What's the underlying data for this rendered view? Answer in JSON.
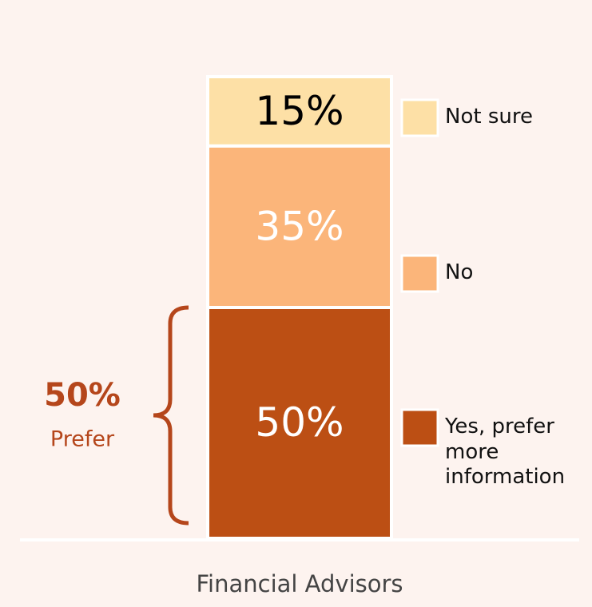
{
  "chart_data": {
    "type": "stacked_bar",
    "categories": [
      "Financial Advisors"
    ],
    "series": [
      {
        "name": "Yes, prefer more information",
        "color": "#bc4f14",
        "values": [
          50
        ],
        "value_labels": [
          "50%"
        ]
      },
      {
        "name": "No",
        "color": "#fbb57a",
        "values": [
          35
        ],
        "value_labels": [
          "35%"
        ]
      },
      {
        "name": "Not sure",
        "color": "#fde0a6",
        "values": [
          15
        ],
        "value_labels": [
          "15%"
        ]
      }
    ],
    "annotations": [
      "50%",
      "Prefer"
    ]
  }
}
